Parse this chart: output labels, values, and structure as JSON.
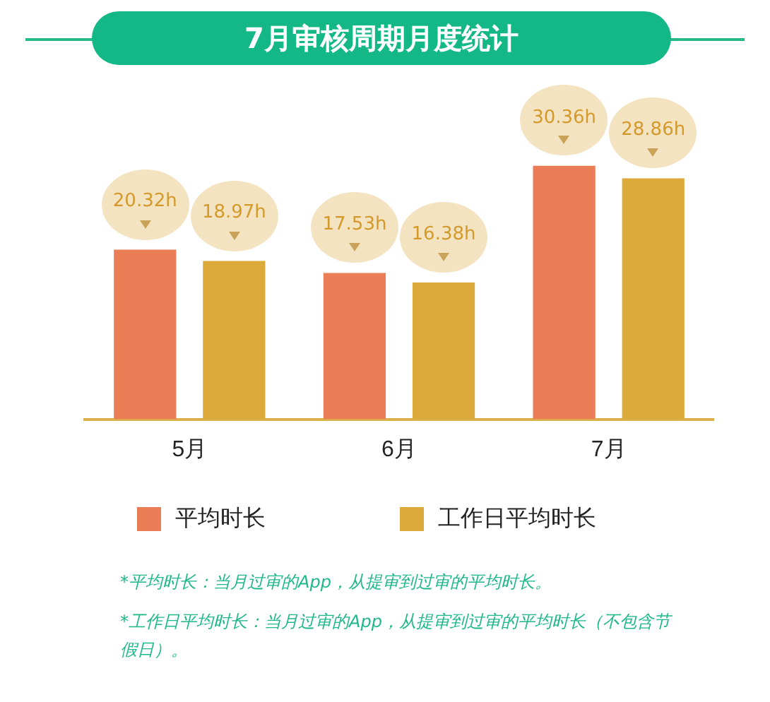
{
  "chart_data": {
    "type": "bar",
    "title": "7月审核周期月度统计",
    "categories": [
      "5月",
      "6月",
      "7月"
    ],
    "series": [
      {
        "name": "平均时长",
        "color": "#ea7d55",
        "values": [
          20.32,
          17.53,
          30.36
        ],
        "value_labels": [
          "20.32h",
          "17.53h",
          "30.36h"
        ]
      },
      {
        "name": "工作日平均时长",
        "color": "#dcaa3a",
        "values": [
          18.97,
          16.38,
          28.86
        ],
        "value_labels": [
          "18.97h",
          "16.38h",
          "28.86h"
        ]
      }
    ],
    "grid": false,
    "legend": "bottom",
    "annotations": [
      "*平均时长：当月过审的App，从提审到过审的平均时长。",
      "*工作日平均时长：当月过审的App，从提审到过审的平均时长（不包含节假日）。"
    ]
  }
}
